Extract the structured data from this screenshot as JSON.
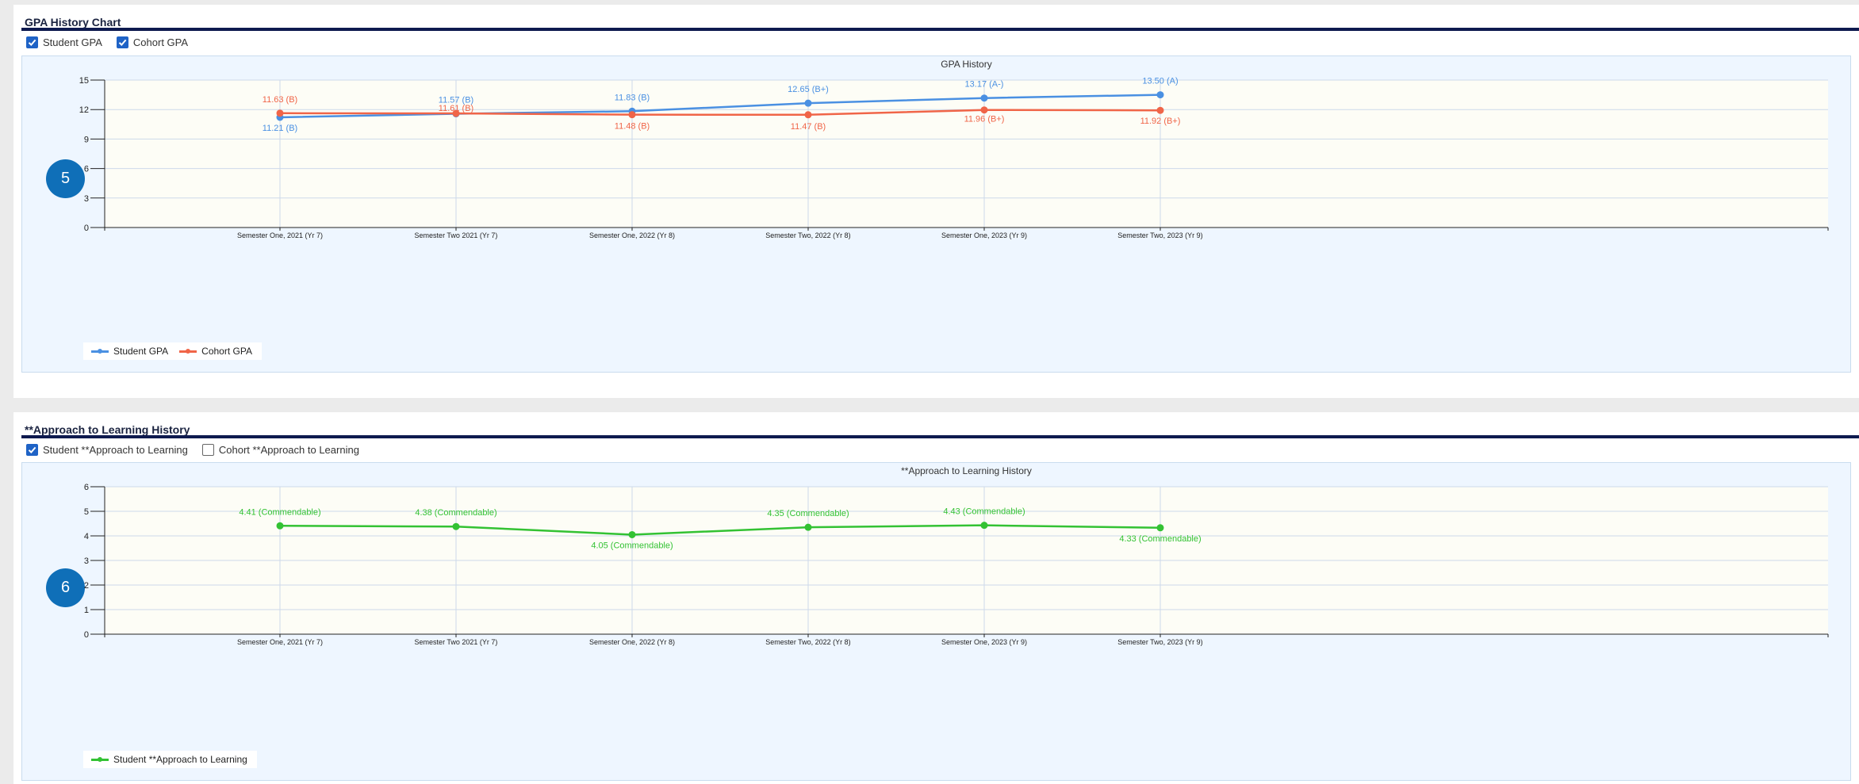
{
  "gpa_panel": {
    "title": "GPA History Chart",
    "toggles": [
      {
        "label": "Student GPA",
        "checked": true
      },
      {
        "label": "Cohort GPA",
        "checked": true
      }
    ],
    "badge": "5"
  },
  "atl_panel": {
    "title": "**Approach to Learning History",
    "toggles": [
      {
        "label": "Student **Approach to Learning",
        "checked": true
      },
      {
        "label": "Cohort **Approach to Learning",
        "checked": false
      }
    ],
    "badge": "6"
  },
  "colors": {
    "student": "#4a90e2",
    "cohort": "#f06548",
    "atl": "#33c233",
    "plot_bg": "#fdfdf6",
    "grid": "#cdd9ea"
  },
  "chart_data": [
    {
      "type": "line",
      "title": "GPA History",
      "categories": [
        "Semester One, 2021 (Yr 7)",
        "Semester Two 2021 (Yr 7)",
        "Semester One, 2022 (Yr 8)",
        "Semester Two, 2022 (Yr 8)",
        "Semester One, 2023 (Yr 9)",
        "Semester Two, 2023 (Yr 9)"
      ],
      "ylim": [
        0,
        15
      ],
      "yticks": [
        0,
        3,
        6,
        9,
        12,
        15
      ],
      "grid": true,
      "legend": "bottom-left",
      "series": [
        {
          "name": "Student GPA",
          "values": [
            11.21,
            11.57,
            11.83,
            12.65,
            13.17,
            13.5
          ],
          "labels": [
            "11.21 (B)",
            "11.57 (B)",
            "11.83 (B)",
            "12.65 (B+)",
            "13.17 (A-)",
            "13.50 (A)"
          ]
        },
        {
          "name": "Cohort GPA",
          "values": [
            11.63,
            11.61,
            11.48,
            11.47,
            11.96,
            11.92
          ],
          "labels": [
            "11.63 (B)",
            "11.61 (B)",
            "11.48 (B)",
            "11.47 (B)",
            "11.96 (B+)",
            "11.92 (B+)"
          ]
        }
      ]
    },
    {
      "type": "line",
      "title": "**Approach to Learning History",
      "categories": [
        "Semester One, 2021 (Yr 7)",
        "Semester Two 2021 (Yr 7)",
        "Semester One, 2022 (Yr 8)",
        "Semester Two, 2022 (Yr 8)",
        "Semester One, 2023 (Yr 9)",
        "Semester Two, 2023 (Yr 9)"
      ],
      "ylim": [
        0,
        6
      ],
      "yticks": [
        0,
        1,
        2,
        3,
        4,
        5,
        6
      ],
      "grid": true,
      "legend": "bottom-left",
      "series": [
        {
          "name": "Student **Approach to Learning",
          "values": [
            4.41,
            4.38,
            4.05,
            4.35,
            4.43,
            4.33
          ],
          "labels": [
            "4.41 (Commendable)",
            "4.38 (Commendable)",
            "4.05 (Commendable)",
            "4.35 (Commendable)",
            "4.43 (Commendable)",
            "4.33 (Commendable)"
          ]
        }
      ]
    }
  ]
}
